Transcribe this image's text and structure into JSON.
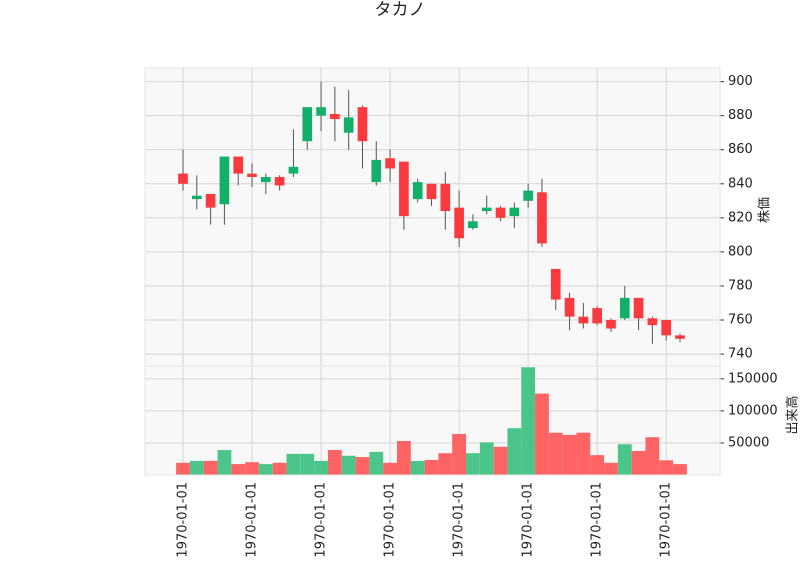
{
  "chart_data": {
    "type": "candlestick",
    "title": "タカノ",
    "ylabel": "株価",
    "volume_label": "出来高",
    "categories": [
      "1970-01-01",
      null,
      null,
      null,
      null,
      "1970-01-01",
      null,
      null,
      null,
      null,
      "1970-01-01",
      null,
      null,
      null,
      null,
      "1970-01-01",
      null,
      null,
      null,
      null,
      "1970-01-01",
      null,
      null,
      null,
      null,
      "1970-01-01",
      null,
      null,
      null,
      null,
      "1970-01-01",
      null,
      null,
      null,
      null,
      "1970-01-01",
      null
    ],
    "open": [
      846,
      831,
      834,
      828,
      856,
      846,
      841,
      844,
      846,
      865,
      880,
      881,
      870,
      885,
      841,
      855,
      853,
      831,
      840,
      840,
      826,
      814,
      824,
      826,
      821,
      830,
      835,
      790,
      773,
      762,
      767,
      760,
      761,
      773,
      761,
      760,
      751
    ],
    "high": [
      860,
      845,
      834,
      856,
      856,
      852,
      846,
      845,
      872,
      885,
      900,
      897,
      895,
      886,
      865,
      860,
      853,
      843,
      840,
      847,
      836,
      822,
      833,
      827,
      829,
      840,
      843,
      790,
      776,
      770,
      768,
      761,
      780,
      773,
      762,
      760,
      752
    ],
    "low": [
      836,
      825,
      816,
      816,
      839,
      838,
      834,
      836,
      844,
      860,
      871,
      865,
      860,
      849,
      839,
      841,
      813,
      829,
      827,
      813,
      803,
      813,
      822,
      818,
      814,
      826,
      803,
      766,
      754,
      755,
      757,
      753,
      760,
      754,
      746,
      748,
      747
    ],
    "close": [
      840,
      833,
      826,
      856,
      846,
      844,
      844,
      839,
      850,
      885,
      885,
      878,
      879,
      865,
      854,
      849,
      821,
      841,
      831,
      824,
      808,
      818,
      826,
      820,
      826,
      836,
      805,
      772,
      762,
      758,
      758,
      755,
      773,
      761,
      757,
      751,
      749
    ],
    "volume": [
      19000,
      22000,
      22000,
      39000,
      17000,
      20000,
      17000,
      19000,
      33000,
      33000,
      22000,
      39000,
      30000,
      28000,
      36000,
      19000,
      53000,
      22000,
      23500,
      34000,
      64000,
      34000,
      51000,
      44000,
      73000,
      168000,
      127000,
      66000,
      62500,
      66000,
      31000,
      19000,
      48000,
      37500,
      59000,
      23000,
      17000
    ],
    "ylim": [
      733,
      908
    ],
    "yticks": [
      740,
      760,
      780,
      800,
      820,
      840,
      860,
      880,
      900
    ],
    "volume_ylim": [
      0,
      170000
    ],
    "volume_yticks": [
      50000,
      100000,
      150000
    ],
    "up_color": "#12b06a",
    "down_color": "#fb3a3f",
    "volume_up_color": "#4cc58a",
    "volume_down_color": "#fe6464",
    "grid": true
  }
}
